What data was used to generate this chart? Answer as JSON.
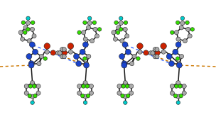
{
  "bg_color": "#ffffff",
  "C_color": "#aaaaaa",
  "N_color": "#1a44cc",
  "O_color": "#cc2200",
  "F_green": "#33dd00",
  "F_cyan": "#00cccc",
  "bond_color": "#1a1a1a",
  "hb_blue": "#3366ff",
  "hb_orange": "#cc7700",
  "figsize": [
    3.04,
    1.89
  ],
  "dpi": 100,
  "C_r": 0.1,
  "N_r": 0.13,
  "O_r": 0.14,
  "Fg_r": 0.09,
  "Fc_r": 0.09,
  "bond_lw": 1.1,
  "hb_lw": 1.0
}
